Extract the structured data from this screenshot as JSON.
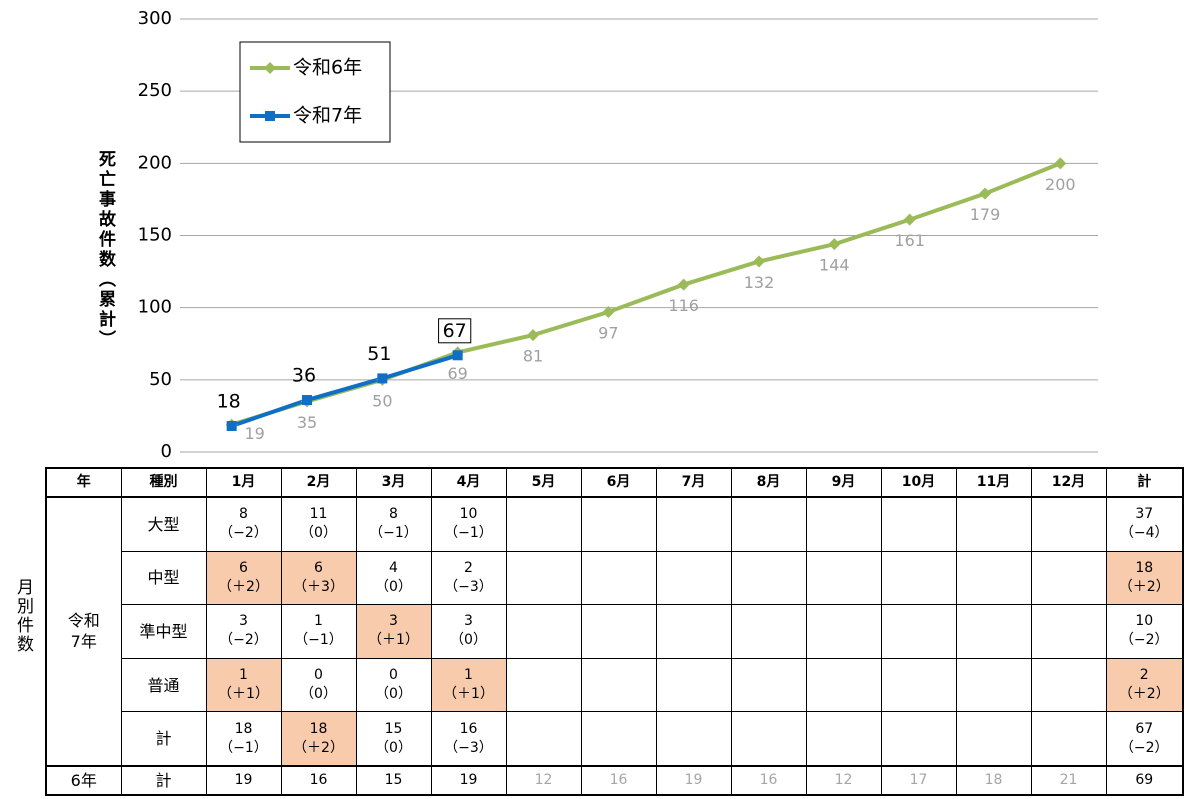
{
  "chart_data": {
    "type": "line",
    "y_label": "死亡事故件数（累計）",
    "categories": [
      null,
      null,
      null,
      null,
      null,
      null,
      null,
      null,
      null,
      null,
      null,
      null
    ],
    "ylim": [
      0,
      300
    ],
    "yticks": [
      0,
      50,
      100,
      150,
      200,
      250,
      300
    ],
    "grid": true,
    "legend": "top-left",
    "series": [
      {
        "name": "令和6年",
        "color": "#9bbb59",
        "marker": "diamond",
        "values": [
          19,
          35,
          50,
          69,
          81,
          97,
          116,
          132,
          144,
          161,
          179,
          200
        ]
      },
      {
        "name": "令和7年",
        "color": "#0f6fc6",
        "marker": "square",
        "values": [
          18,
          36,
          51,
          67,
          null,
          null,
          null,
          null,
          null,
          null,
          null,
          null
        ]
      }
    ]
  },
  "table": {
    "side_label": "月別件数",
    "highlight_color": "#f8cbad",
    "muted_color": "#a6a6a6",
    "header": [
      "年",
      "種別",
      "1月",
      "2月",
      "3月",
      "4月",
      "5月",
      "6月",
      "7月",
      "8月",
      "9月",
      "10月",
      "11月",
      "12月",
      "計"
    ],
    "group_label": "令和7年",
    "rows": [
      {
        "kind": "大型",
        "cells": [
          {
            "value": 8,
            "diff": "（−2）"
          },
          {
            "value": 11,
            "diff": "（0）"
          },
          {
            "value": 8,
            "diff": "（−1）"
          },
          {
            "value": 10,
            "diff": "（−1）"
          },
          null,
          null,
          null,
          null,
          null,
          null,
          null,
          null,
          {
            "value": 37,
            "diff": "（−4）"
          }
        ]
      },
      {
        "kind": "中型",
        "cells": [
          {
            "value": 6,
            "diff": "（＋2）",
            "highlight": true
          },
          {
            "value": 6,
            "diff": "（＋3）",
            "highlight": true
          },
          {
            "value": 4,
            "diff": "（0）"
          },
          {
            "value": 2,
            "diff": "（−3）"
          },
          null,
          null,
          null,
          null,
          null,
          null,
          null,
          null,
          {
            "value": 18,
            "diff": "（＋2）",
            "highlight": true
          }
        ]
      },
      {
        "kind": "準中型",
        "cells": [
          {
            "value": 3,
            "diff": "（−2）"
          },
          {
            "value": 1,
            "diff": "（−1）"
          },
          {
            "value": 3,
            "diff": "（＋1）",
            "highlight": true
          },
          {
            "value": 3,
            "diff": "（0）"
          },
          null,
          null,
          null,
          null,
          null,
          null,
          null,
          null,
          {
            "value": 10,
            "diff": "（−2）"
          }
        ]
      },
      {
        "kind": "普通",
        "cells": [
          {
            "value": 1,
            "diff": "（＋1）",
            "highlight": true
          },
          {
            "value": 0,
            "diff": "（0）"
          },
          {
            "value": 0,
            "diff": "（0）"
          },
          {
            "value": 1,
            "diff": "（＋1）",
            "highlight": true
          },
          null,
          null,
          null,
          null,
          null,
          null,
          null,
          null,
          {
            "value": 2,
            "diff": "（＋2）",
            "highlight": true
          }
        ]
      },
      {
        "kind": "計",
        "cells": [
          {
            "value": 18,
            "diff": "（−1）"
          },
          {
            "value": 18,
            "diff": "（＋2）",
            "highlight": true
          },
          {
            "value": 15,
            "diff": "（0）"
          },
          {
            "value": 16,
            "diff": "（−3）"
          },
          null,
          null,
          null,
          null,
          null,
          null,
          null,
          null,
          {
            "value": 67,
            "diff": "（−2）"
          }
        ]
      }
    ],
    "prev": {
      "year": "6年",
      "kind": "計",
      "cells": [
        {
          "value": 19
        },
        {
          "value": 16
        },
        {
          "value": 15
        },
        {
          "value": 19
        },
        {
          "value": 12,
          "muted": true
        },
        {
          "value": 16,
          "muted": true
        },
        {
          "value": 19,
          "muted": true
        },
        {
          "value": 16,
          "muted": true
        },
        {
          "value": 12,
          "muted": true
        },
        {
          "value": 17,
          "muted": true
        },
        {
          "value": 18,
          "muted": true
        },
        {
          "value": 21,
          "muted": true
        },
        {
          "value": 69
        }
      ]
    }
  }
}
